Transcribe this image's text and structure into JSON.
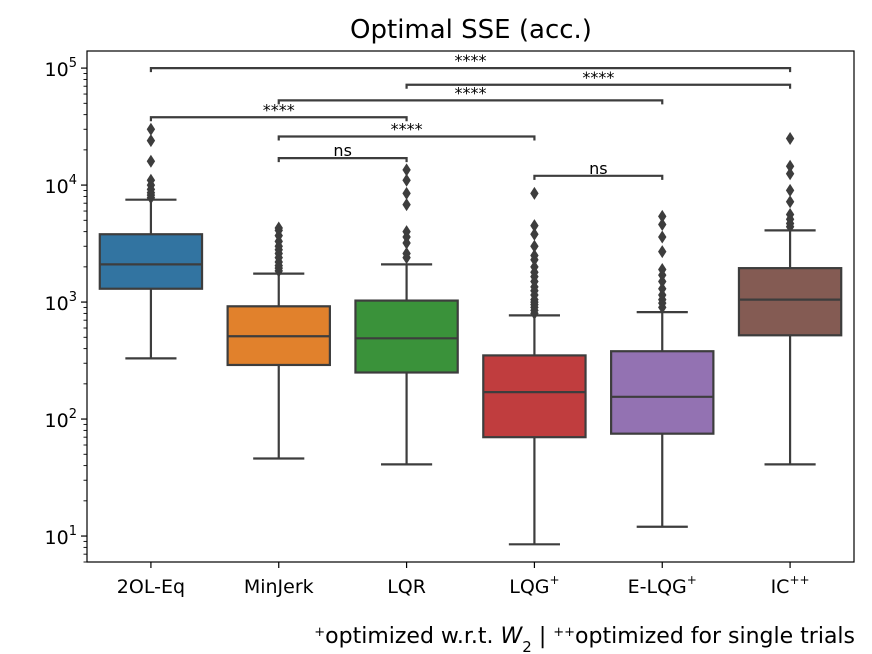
{
  "chart_data": {
    "type": "box",
    "title": "Optimal SSE (acc.)",
    "yscale": "log",
    "ylim": [
      6,
      140000
    ],
    "y_ticks": [
      {
        "value": 10,
        "base": "10",
        "exp": "1"
      },
      {
        "value": 100,
        "base": "10",
        "exp": "2"
      },
      {
        "value": 1000,
        "base": "10",
        "exp": "3"
      },
      {
        "value": 10000,
        "base": "10",
        "exp": "4"
      },
      {
        "value": 100000,
        "base": "10",
        "exp": "5"
      }
    ],
    "caption": {
      "p1_sup": "+",
      "p1_text": "optimized w.r.t. ",
      "p1_var": "W",
      "p1_sub": "2",
      "sep": " | ",
      "p2_sup": "++",
      "p2_text": "optimized for single trials"
    },
    "categories": [
      {
        "label": "2OL-Eq",
        "sup": ""
      },
      {
        "label": "MinJerk",
        "sup": ""
      },
      {
        "label": "LQR",
        "sup": ""
      },
      {
        "label": "LQG",
        "sup": "+"
      },
      {
        "label": "E-LQG",
        "sup": "+"
      },
      {
        "label": "IC",
        "sup": "++"
      }
    ],
    "boxes": [
      {
        "color": "#3274a1",
        "whislo": 330,
        "q1": 1300,
        "med": 2100,
        "q3": 3800,
        "whishi": 7500,
        "fliers": [
          7800,
          8200,
          8600,
          9200,
          10000,
          11000,
          16000,
          24000,
          30000
        ]
      },
      {
        "color": "#e1812c",
        "whislo": 46,
        "q1": 290,
        "med": 510,
        "q3": 920,
        "whishi": 1750,
        "fliers": [
          1850,
          1950,
          2050,
          2200,
          2400,
          2600,
          2800,
          3000,
          3300,
          3700,
          4100,
          4300
        ]
      },
      {
        "color": "#3a923a",
        "whislo": 41,
        "q1": 250,
        "med": 490,
        "q3": 1030,
        "whishi": 2100,
        "fliers": [
          2400,
          2600,
          3200,
          3600,
          4000,
          6800,
          8500,
          11000,
          13500
        ]
      },
      {
        "color": "#c03d3e",
        "whislo": 8.5,
        "q1": 70,
        "med": 170,
        "q3": 350,
        "whishi": 770,
        "fliers": [
          800,
          850,
          900,
          950,
          1000,
          1050,
          1150,
          1250,
          1350,
          1500,
          1650,
          1800,
          2000,
          2300,
          2500,
          3000,
          3800,
          4500,
          8500
        ]
      },
      {
        "color": "#9372b2",
        "whislo": 12,
        "q1": 75,
        "med": 155,
        "q3": 380,
        "whishi": 820,
        "fliers": [
          900,
          980,
          1050,
          1150,
          1300,
          1500,
          1700,
          1900,
          2700,
          3600,
          4600,
          5400
        ]
      },
      {
        "color": "#845b53",
        "whislo": 41,
        "q1": 520,
        "med": 1050,
        "q3": 1950,
        "whishi": 4100,
        "fliers": [
          4400,
          4700,
          5100,
          5600,
          7200,
          9000,
          12500,
          14500,
          25000
        ]
      }
    ],
    "annotations": [
      {
        "from": 0,
        "to": 5,
        "y": 100000,
        "text": "****"
      },
      {
        "from": 2,
        "to": 5,
        "y": 72000,
        "text": "****"
      },
      {
        "from": 1,
        "to": 4,
        "y": 53000,
        "text": "****"
      },
      {
        "from": 0,
        "to": 2,
        "y": 38000,
        "text": "****"
      },
      {
        "from": 1,
        "to": 3,
        "y": 26000,
        "text": "****"
      },
      {
        "from": 1,
        "to": 2,
        "y": 17000,
        "text": "ns"
      },
      {
        "from": 3,
        "to": 4,
        "y": 12000,
        "text": "ns"
      }
    ]
  }
}
